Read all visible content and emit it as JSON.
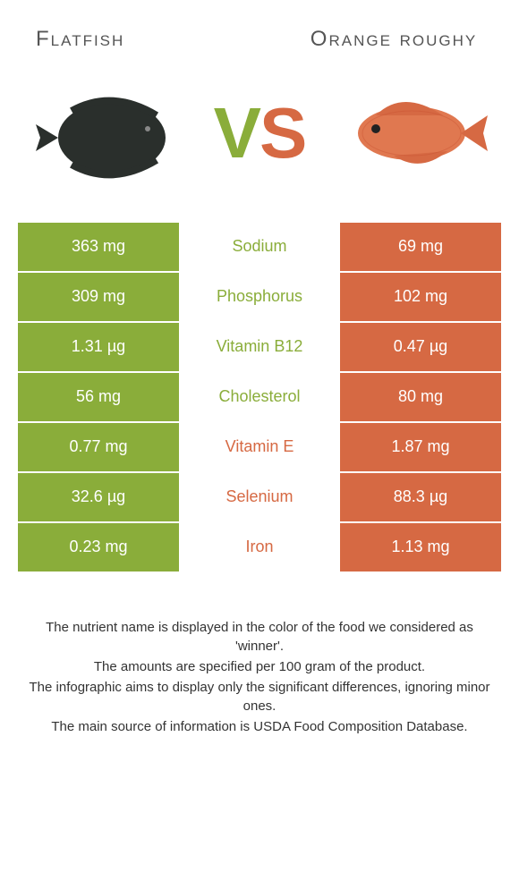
{
  "colors": {
    "left": "#8aad3a",
    "right": "#d66943",
    "text": "#333333",
    "white": "#ffffff"
  },
  "header": {
    "left_title": "Flatfish",
    "right_title": "Orange roughy",
    "vs_v": "V",
    "vs_s": "S"
  },
  "rows": [
    {
      "left": "363 mg",
      "name": "Sodium",
      "right": "69 mg",
      "winner": "left"
    },
    {
      "left": "309 mg",
      "name": "Phosphorus",
      "right": "102 mg",
      "winner": "left"
    },
    {
      "left": "1.31 µg",
      "name": "Vitamin B12",
      "right": "0.47 µg",
      "winner": "left"
    },
    {
      "left": "56 mg",
      "name": "Cholesterol",
      "right": "80 mg",
      "winner": "left"
    },
    {
      "left": "0.77 mg",
      "name": "Vitamin E",
      "right": "1.87 mg",
      "winner": "right"
    },
    {
      "left": "32.6 µg",
      "name": "Selenium",
      "right": "88.3 µg",
      "winner": "right"
    },
    {
      "left": "0.23 mg",
      "name": "Iron",
      "right": "1.13 mg",
      "winner": "right"
    }
  ],
  "footer": {
    "line1": "The nutrient name is displayed in the color of the food we considered as 'winner'.",
    "line2": "The amounts are specified per 100 gram of the product.",
    "line3": "The infographic aims to display only the significant differences, ignoring minor ones.",
    "line4": "The main source of information is USDA Food Composition Database."
  }
}
